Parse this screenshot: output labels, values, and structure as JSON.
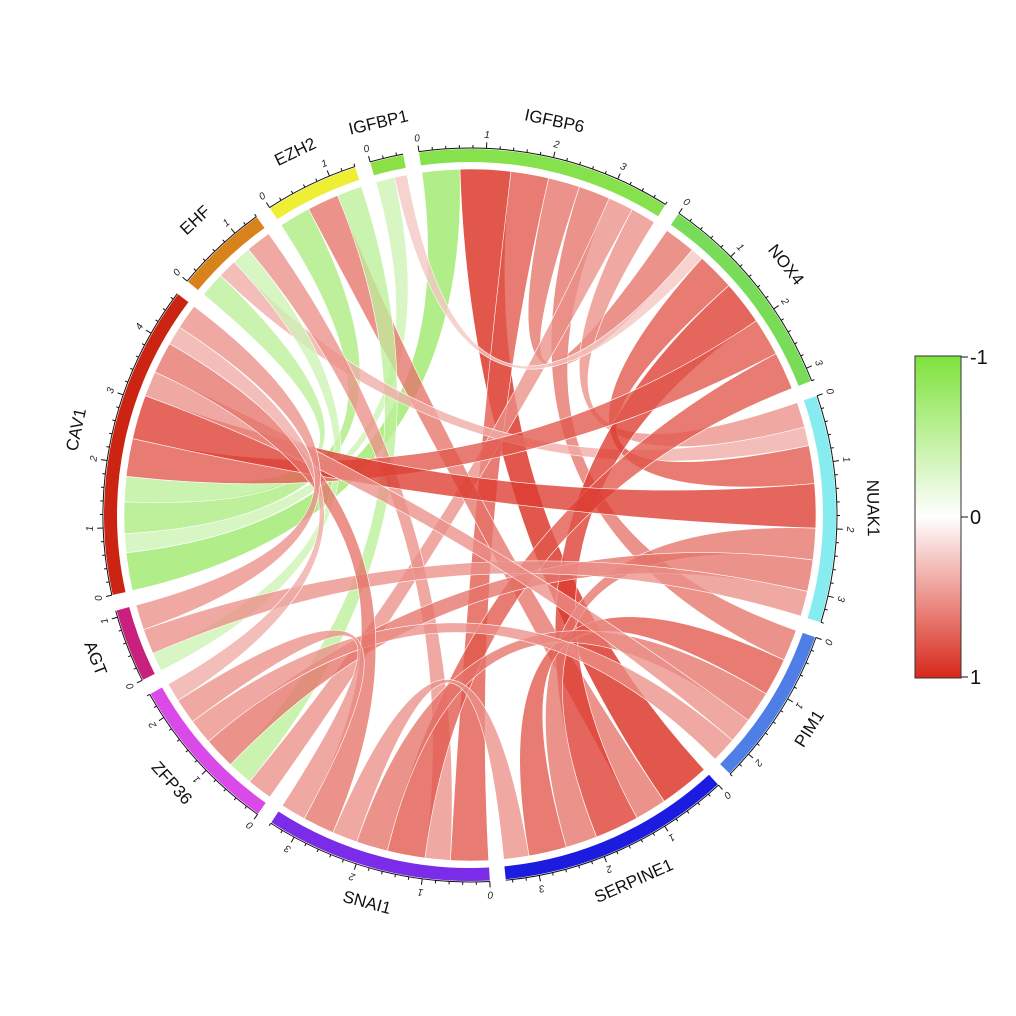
{
  "chart_data": {
    "type": "chord",
    "title": "",
    "sectors": [
      {
        "name": "IGFBP6",
        "color": "#86e24c"
      },
      {
        "name": "NOX4",
        "color": "#79dc58"
      },
      {
        "name": "NUAK1",
        "color": "#86ecf0"
      },
      {
        "name": "PIM1",
        "color": "#4f7fe6"
      },
      {
        "name": "SERPINE1",
        "color": "#1c1ce0"
      },
      {
        "name": "SNAI1",
        "color": "#7a2ce8"
      },
      {
        "name": "ZFP36",
        "color": "#d94ae8"
      },
      {
        "name": "AGT",
        "color": "#c8207c"
      },
      {
        "name": "CAV1",
        "color": "#cc2412"
      },
      {
        "name": "EHF",
        "color": "#d8821c"
      },
      {
        "name": "EZH2",
        "color": "#eeee34"
      },
      {
        "name": "IGFBP1",
        "color": "#8ae044"
      }
    ],
    "links": [
      {
        "from": "IGFBP6",
        "to": "CAV1",
        "value": -0.6
      },
      {
        "from": "IGFBP6",
        "to": "SERPINE1",
        "value": 0.8
      },
      {
        "from": "IGFBP6",
        "to": "SNAI1",
        "value": 0.6
      },
      {
        "from": "IGFBP6",
        "to": "NOX4",
        "value": 0.5
      },
      {
        "from": "IGFBP6",
        "to": "PIM1",
        "value": 0.5
      },
      {
        "from": "IGFBP6",
        "to": "ZFP36",
        "value": 0.4
      },
      {
        "from": "IGFBP6",
        "to": "NUAK1",
        "value": 0.4
      },
      {
        "from": "IGFBP1",
        "to": "CAV1",
        "value": -0.3
      },
      {
        "from": "IGFBP1",
        "to": "NOX4",
        "value": 0.2
      },
      {
        "from": "EZH2",
        "to": "CAV1",
        "value": -0.5
      },
      {
        "from": "EZH2",
        "to": "SERPINE1",
        "value": 0.5
      },
      {
        "from": "EZH2",
        "to": "ZFP36",
        "value": -0.4
      },
      {
        "from": "EHF",
        "to": "CAV1",
        "value": -0.4
      },
      {
        "from": "EHF",
        "to": "NUAK1",
        "value": 0.3
      },
      {
        "from": "EHF",
        "to": "AGT",
        "value": -0.3
      },
      {
        "from": "EHF",
        "to": "SNAI1",
        "value": 0.4
      },
      {
        "from": "NOX4",
        "to": "NUAK1",
        "value": 0.6
      },
      {
        "from": "NOX4",
        "to": "SERPINE1",
        "value": 0.7
      },
      {
        "from": "NOX4",
        "to": "CAV1",
        "value": 0.6
      },
      {
        "from": "NOX4",
        "to": "SNAI1",
        "value": 0.6
      },
      {
        "from": "NUAK1",
        "to": "CAV1",
        "value": 0.7
      },
      {
        "from": "NUAK1",
        "to": "SERPINE1",
        "value": 0.5
      },
      {
        "from": "NUAK1",
        "to": "ZFP36",
        "value": 0.5
      },
      {
        "from": "NUAK1",
        "to": "AGT",
        "value": 0.4
      },
      {
        "from": "PIM1",
        "to": "SERPINE1",
        "value": 0.6
      },
      {
        "from": "PIM1",
        "to": "SNAI1",
        "value": 0.5
      },
      {
        "from": "PIM1",
        "to": "CAV1",
        "value": 0.4
      },
      {
        "from": "PIM1",
        "to": "ZFP36",
        "value": 0.4
      },
      {
        "from": "SERPINE1",
        "to": "SNAI1",
        "value": 0.4
      },
      {
        "from": "SNAI1",
        "to": "CAV1",
        "value": 0.5
      },
      {
        "from": "SNAI1",
        "to": "ZFP36",
        "value": 0.4
      },
      {
        "from": "ZFP36",
        "to": "CAV1",
        "value": 0.3
      },
      {
        "from": "AGT",
        "to": "CAV1",
        "value": 0.4
      }
    ],
    "legend": {
      "title": "",
      "placement": "right",
      "range": [
        -1,
        1
      ],
      "labels": [
        "-1",
        "0",
        "1"
      ],
      "colors": {
        "negative": "#7fe23c",
        "zero": "#ffffff",
        "positive": "#d8281a"
      }
    }
  }
}
